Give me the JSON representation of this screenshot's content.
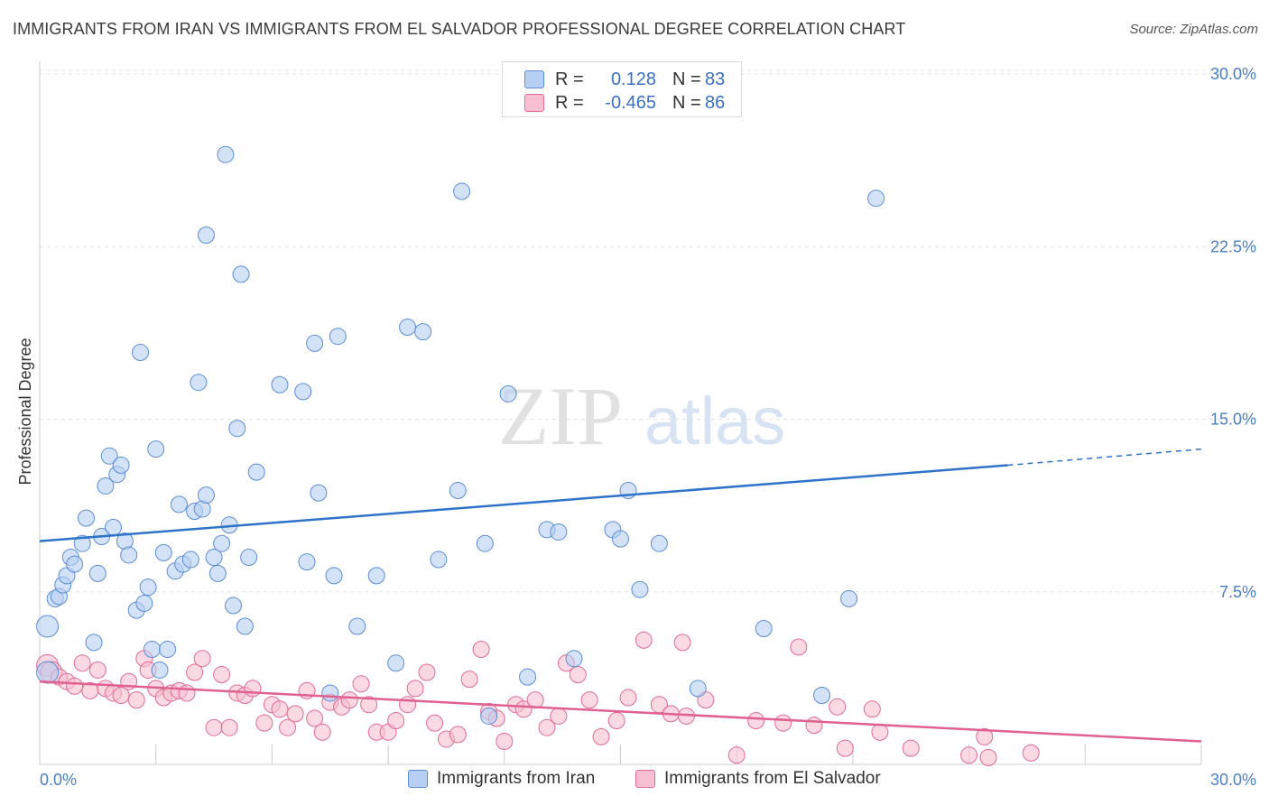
{
  "header": {
    "title": "IMMIGRANTS FROM IRAN VS IMMIGRANTS FROM EL SALVADOR PROFESSIONAL DEGREE CORRELATION CHART",
    "source": "Source: ZipAtlas.com"
  },
  "stats": [
    {
      "r_label": "R =",
      "r_value": "0.128",
      "n_label": "N =",
      "n_value": "83"
    },
    {
      "r_label": "R =",
      "r_value": "-0.465",
      "n_label": "N =",
      "n_value": "86"
    }
  ],
  "chart_data": {
    "type": "scatter",
    "ylabel": "Professional Degree",
    "xlim": [
      0,
      30
    ],
    "ylim": [
      0,
      30
    ],
    "y_ticks": [
      {
        "value": 7.5,
        "label": "7.5%"
      },
      {
        "value": 15.0,
        "label": "15.0%"
      },
      {
        "value": 22.5,
        "label": "22.5%"
      },
      {
        "value": 30.0,
        "label": "30.0%"
      }
    ],
    "x_tick_labels": {
      "left": "0.0%",
      "right": "30.0%"
    },
    "grid": true,
    "legend": "top-center and bottom",
    "series": [
      {
        "name": "Immigrants from Iran",
        "color": "#5b8ed6",
        "fill": "#b7cff2",
        "trend": {
          "x0": 0,
          "y0": 9.7,
          "x1": 25,
          "y1": 13.0,
          "dashed_to_x": 30,
          "dashed_to_y": 13.7
        },
        "points": [
          [
            0.2,
            6.0
          ],
          [
            0.2,
            4.0
          ],
          [
            0.4,
            7.2
          ],
          [
            0.5,
            7.3
          ],
          [
            0.6,
            7.8
          ],
          [
            0.7,
            8.2
          ],
          [
            0.8,
            9.0
          ],
          [
            0.9,
            8.7
          ],
          [
            1.1,
            9.6
          ],
          [
            1.2,
            10.7
          ],
          [
            1.4,
            5.3
          ],
          [
            1.5,
            8.3
          ],
          [
            1.6,
            9.9
          ],
          [
            1.7,
            12.1
          ],
          [
            1.8,
            13.4
          ],
          [
            1.9,
            10.3
          ],
          [
            2.0,
            12.6
          ],
          [
            2.1,
            13.0
          ],
          [
            2.2,
            9.7
          ],
          [
            2.3,
            9.1
          ],
          [
            2.5,
            6.7
          ],
          [
            2.6,
            17.9
          ],
          [
            2.7,
            7.0
          ],
          [
            2.8,
            7.7
          ],
          [
            2.9,
            5.0
          ],
          [
            3.0,
            13.7
          ],
          [
            3.1,
            4.1
          ],
          [
            3.2,
            9.2
          ],
          [
            3.3,
            5.0
          ],
          [
            3.5,
            8.4
          ],
          [
            3.6,
            11.3
          ],
          [
            3.7,
            8.7
          ],
          [
            3.9,
            8.9
          ],
          [
            4.0,
            11.0
          ],
          [
            4.1,
            16.6
          ],
          [
            4.2,
            11.1
          ],
          [
            4.3,
            23.0
          ],
          [
            4.3,
            11.7
          ],
          [
            4.5,
            9.0
          ],
          [
            4.6,
            8.3
          ],
          [
            4.7,
            9.6
          ],
          [
            4.8,
            26.5
          ],
          [
            4.9,
            10.4
          ],
          [
            5.0,
            6.9
          ],
          [
            5.1,
            14.6
          ],
          [
            5.2,
            21.3
          ],
          [
            5.3,
            6.0
          ],
          [
            5.4,
            9.0
          ],
          [
            5.6,
            12.7
          ],
          [
            6.2,
            16.5
          ],
          [
            6.8,
            16.2
          ],
          [
            6.9,
            8.8
          ],
          [
            7.1,
            18.3
          ],
          [
            7.2,
            11.8
          ],
          [
            7.5,
            3.1
          ],
          [
            7.6,
            8.2
          ],
          [
            7.7,
            18.6
          ],
          [
            8.2,
            6.0
          ],
          [
            8.7,
            8.2
          ],
          [
            9.2,
            4.4
          ],
          [
            9.5,
            19.0
          ],
          [
            9.9,
            18.8
          ],
          [
            10.3,
            8.9
          ],
          [
            10.8,
            11.9
          ],
          [
            10.9,
            24.9
          ],
          [
            11.5,
            9.6
          ],
          [
            11.6,
            2.1
          ],
          [
            12.1,
            16.1
          ],
          [
            12.6,
            3.8
          ],
          [
            13.1,
            10.2
          ],
          [
            13.4,
            10.1
          ],
          [
            13.8,
            4.6
          ],
          [
            14.8,
            10.2
          ],
          [
            15.0,
            9.8
          ],
          [
            15.2,
            11.9
          ],
          [
            15.5,
            7.6
          ],
          [
            16.0,
            9.6
          ],
          [
            17.0,
            3.3
          ],
          [
            18.7,
            5.9
          ],
          [
            20.2,
            3.0
          ],
          [
            20.9,
            7.2
          ],
          [
            21.6,
            24.6
          ],
          [
            16.8,
            28.7
          ]
        ]
      },
      {
        "name": "Immigrants from El Salvador",
        "color": "#e06b95",
        "fill": "#f7bfd1",
        "trend": {
          "x0": 0,
          "y0": 3.6,
          "x1": 30,
          "y1": 1.0
        },
        "points": [
          [
            0.2,
            4.3
          ],
          [
            0.3,
            4.0
          ],
          [
            0.5,
            3.8
          ],
          [
            0.7,
            3.6
          ],
          [
            0.9,
            3.4
          ],
          [
            1.1,
            4.4
          ],
          [
            1.3,
            3.2
          ],
          [
            1.5,
            4.1
          ],
          [
            1.7,
            3.3
          ],
          [
            1.9,
            3.1
          ],
          [
            2.1,
            3.0
          ],
          [
            2.3,
            3.6
          ],
          [
            2.5,
            2.8
          ],
          [
            2.7,
            4.6
          ],
          [
            2.8,
            4.1
          ],
          [
            3.0,
            3.3
          ],
          [
            3.2,
            2.9
          ],
          [
            3.4,
            3.1
          ],
          [
            3.6,
            3.2
          ],
          [
            3.8,
            3.1
          ],
          [
            4.0,
            4.0
          ],
          [
            4.2,
            4.6
          ],
          [
            4.5,
            1.6
          ],
          [
            4.7,
            3.9
          ],
          [
            4.9,
            1.6
          ],
          [
            5.1,
            3.1
          ],
          [
            5.3,
            3.0
          ],
          [
            5.5,
            3.3
          ],
          [
            5.8,
            1.8
          ],
          [
            6.0,
            2.6
          ],
          [
            6.2,
            2.4
          ],
          [
            6.4,
            1.6
          ],
          [
            6.6,
            2.2
          ],
          [
            6.9,
            3.2
          ],
          [
            7.1,
            2.0
          ],
          [
            7.3,
            1.4
          ],
          [
            7.5,
            2.7
          ],
          [
            7.8,
            2.5
          ],
          [
            8.0,
            2.8
          ],
          [
            8.3,
            3.5
          ],
          [
            8.5,
            2.6
          ],
          [
            8.7,
            1.4
          ],
          [
            9.0,
            1.4
          ],
          [
            9.2,
            1.9
          ],
          [
            9.5,
            2.6
          ],
          [
            9.7,
            3.3
          ],
          [
            10.0,
            4.0
          ],
          [
            10.2,
            1.8
          ],
          [
            10.5,
            1.1
          ],
          [
            10.8,
            1.3
          ],
          [
            11.1,
            3.7
          ],
          [
            11.4,
            5.0
          ],
          [
            11.6,
            2.3
          ],
          [
            11.8,
            2.0
          ],
          [
            12.0,
            1.0
          ],
          [
            12.3,
            2.6
          ],
          [
            12.5,
            2.4
          ],
          [
            12.8,
            2.8
          ],
          [
            13.1,
            1.6
          ],
          [
            13.4,
            2.1
          ],
          [
            13.6,
            4.4
          ],
          [
            13.9,
            3.9
          ],
          [
            14.2,
            2.8
          ],
          [
            14.5,
            1.2
          ],
          [
            14.9,
            1.9
          ],
          [
            15.2,
            2.9
          ],
          [
            15.6,
            5.4
          ],
          [
            16.0,
            2.6
          ],
          [
            16.3,
            2.2
          ],
          [
            16.6,
            5.3
          ],
          [
            16.7,
            2.1
          ],
          [
            17.2,
            2.8
          ],
          [
            18.0,
            0.4
          ],
          [
            18.5,
            1.9
          ],
          [
            19.2,
            1.8
          ],
          [
            19.6,
            5.1
          ],
          [
            20.0,
            1.7
          ],
          [
            20.6,
            2.5
          ],
          [
            20.8,
            0.7
          ],
          [
            21.5,
            2.4
          ],
          [
            21.7,
            1.4
          ],
          [
            22.5,
            0.7
          ],
          [
            24.0,
            0.4
          ],
          [
            24.5,
            0.3
          ],
          [
            25.6,
            0.5
          ],
          [
            24.4,
            1.2
          ]
        ]
      }
    ]
  },
  "watermark": {
    "zip": "ZIP",
    "atlas": "atlas"
  }
}
